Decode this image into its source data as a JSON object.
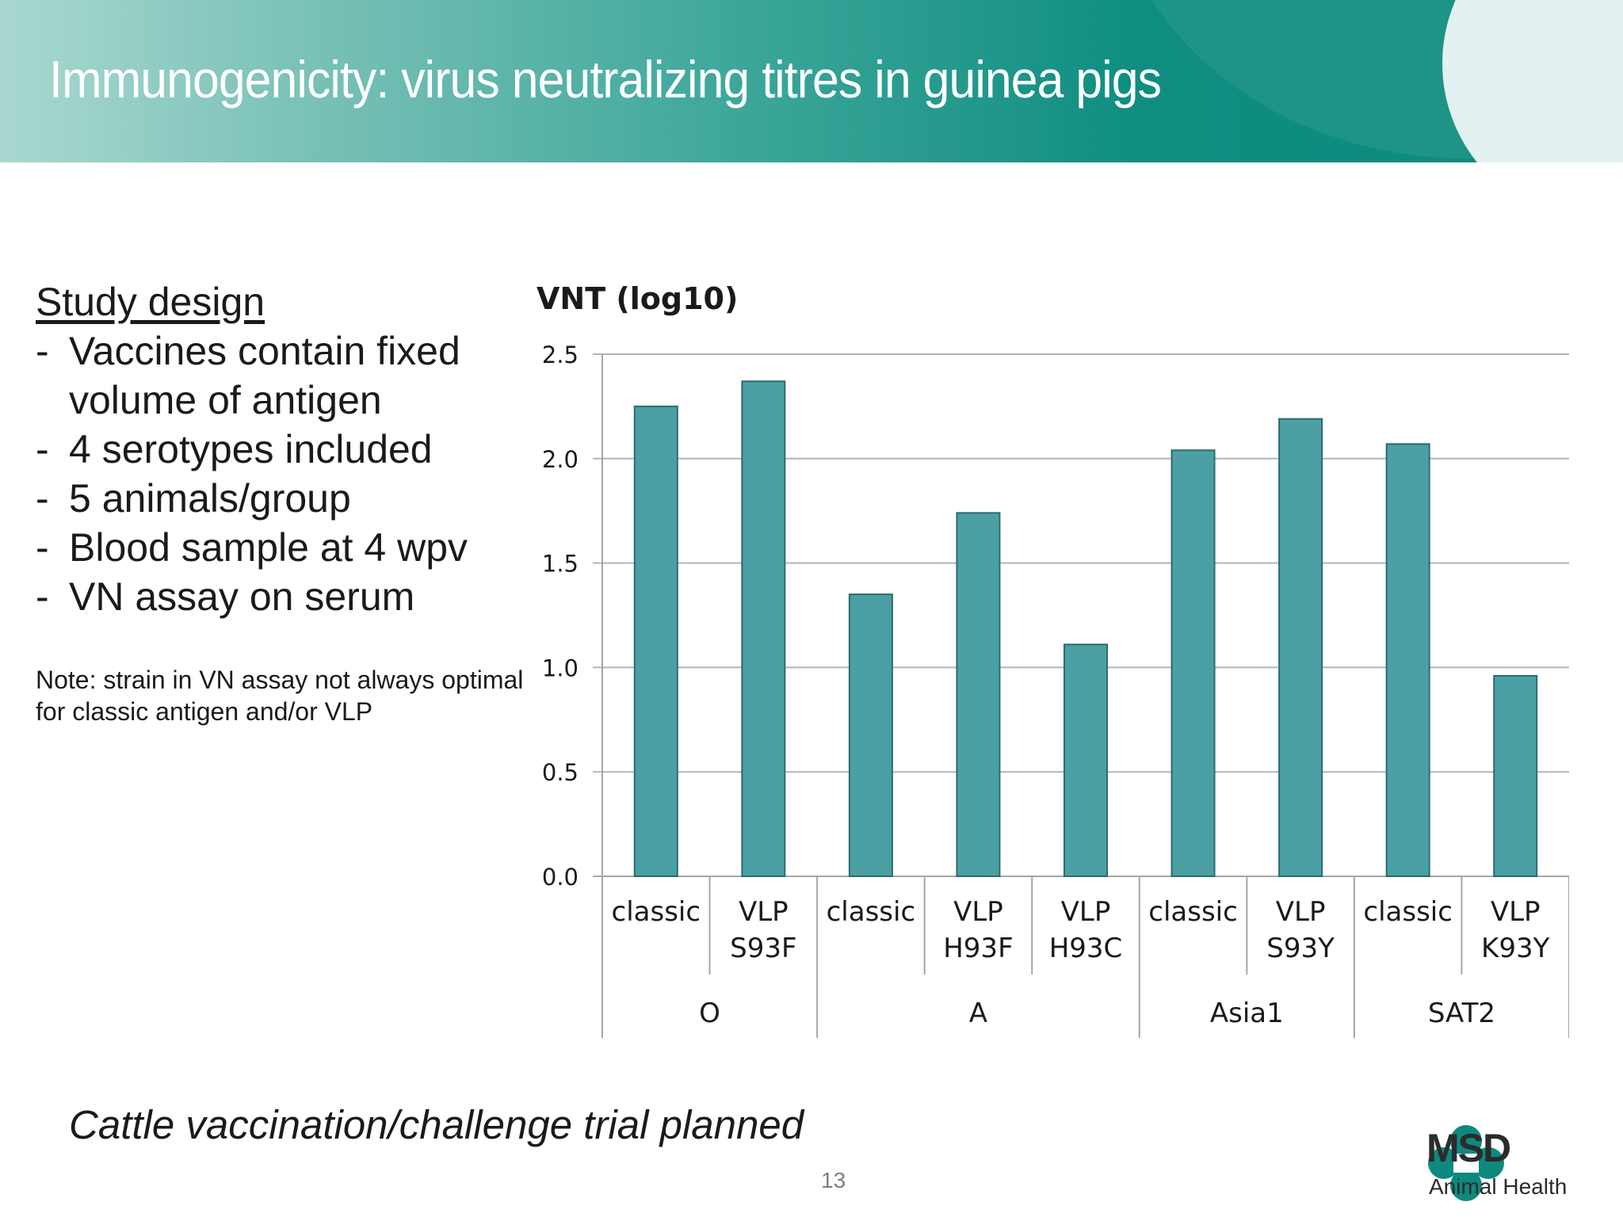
{
  "slide": {
    "title": "Immunogenicity: virus neutralizing titres in guinea pigs",
    "study_heading": "Study design",
    "study_items": [
      "Vaccines contain fixed volume of antigen",
      "4 serotypes included",
      "5 animals/group",
      "Blood sample at 4 wpv",
      "VN assay on serum"
    ],
    "note": "Note: strain in VN assay not always optimal for classic antigen and/or VLP",
    "footer": "Cattle vaccination/challenge trial planned",
    "page_number": "13",
    "logo": {
      "name": "MSD",
      "subtitle": "Animal Health",
      "icon": "msd-logo-icon",
      "color": "#0d8a7d"
    }
  },
  "chart_data": {
    "type": "bar",
    "ylabel": "VNT (log10)",
    "ylim": [
      0,
      2.5
    ],
    "yticks": [
      "0.0",
      "0.5",
      "1.0",
      "1.5",
      "2.0",
      "2.5"
    ],
    "grid": true,
    "bar_color": "#4aa0a3",
    "categories": [
      {
        "label": [
          "classic"
        ],
        "group": "O"
      },
      {
        "label": [
          "VLP",
          "S93F"
        ],
        "group": "O"
      },
      {
        "label": [
          "classic"
        ],
        "group": "A"
      },
      {
        "label": [
          "VLP",
          "H93F"
        ],
        "group": "A"
      },
      {
        "label": [
          "VLP",
          "H93C"
        ],
        "group": "A"
      },
      {
        "label": [
          "classic"
        ],
        "group": "Asia1"
      },
      {
        "label": [
          "VLP",
          "S93Y"
        ],
        "group": "Asia1"
      },
      {
        "label": [
          "classic"
        ],
        "group": "SAT2"
      },
      {
        "label": [
          "VLP",
          "K93Y"
        ],
        "group": "SAT2"
      }
    ],
    "groups": [
      "O",
      "A",
      "Asia1",
      "SAT2"
    ],
    "values": [
      2.25,
      2.37,
      1.35,
      1.74,
      1.11,
      2.04,
      2.19,
      2.07,
      0.96
    ]
  }
}
